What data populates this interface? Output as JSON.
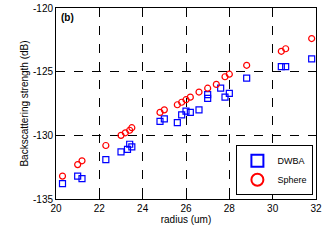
{
  "chart_data": {
    "type": "scatter",
    "annotations": [
      "(b)"
    ],
    "x_label": "radius (um)",
    "y_label": "Backscattering strength (dB)",
    "xlim": [
      20,
      32
    ],
    "xticks": [
      20,
      22,
      24,
      26,
      28,
      30,
      32
    ],
    "ylim": [
      -135,
      -120
    ],
    "yticks": [
      -135,
      -130,
      -125,
      -120
    ],
    "grid": true,
    "legend": "lower right",
    "series": [
      {
        "name": "DWBA",
        "color": "#0000ff",
        "marker": "square",
        "x": [
          20.3,
          21.0,
          21.2,
          22.3,
          23.0,
          23.3,
          23.4,
          23.5,
          24.8,
          25.0,
          25.6,
          25.8,
          26.0,
          26.2,
          26.6,
          27.0,
          27.0,
          27.6,
          27.8,
          28.0,
          28.8,
          30.4,
          30.6,
          31.8
        ],
        "values": [
          -133.8,
          -133.2,
          -133.4,
          -131.9,
          -131.3,
          -131.1,
          -130.7,
          -130.9,
          -128.9,
          -128.7,
          -129.0,
          -128.4,
          -128.1,
          -128.2,
          -128.0,
          -127.1,
          -126.8,
          -126.3,
          -127.0,
          -126.7,
          -125.5,
          -124.6,
          -124.6,
          -124.0
        ]
      },
      {
        "name": "Sphere",
        "color": "#ff0000",
        "marker": "circle",
        "x": [
          20.3,
          21.0,
          21.2,
          22.3,
          23.0,
          23.2,
          23.4,
          23.5,
          24.8,
          25.0,
          25.6,
          25.8,
          26.0,
          26.2,
          26.6,
          27.0,
          27.4,
          27.8,
          28.0,
          28.8,
          30.4,
          30.6,
          31.8
        ],
        "values": [
          -133.2,
          -132.3,
          -132.0,
          -130.8,
          -130.0,
          -129.8,
          -129.6,
          -129.4,
          -128.2,
          -128.0,
          -127.6,
          -127.4,
          -127.2,
          -127.0,
          -126.6,
          -126.3,
          -126.0,
          -125.4,
          -125.2,
          -124.5,
          -123.4,
          -123.2,
          -122.4
        ]
      }
    ]
  }
}
